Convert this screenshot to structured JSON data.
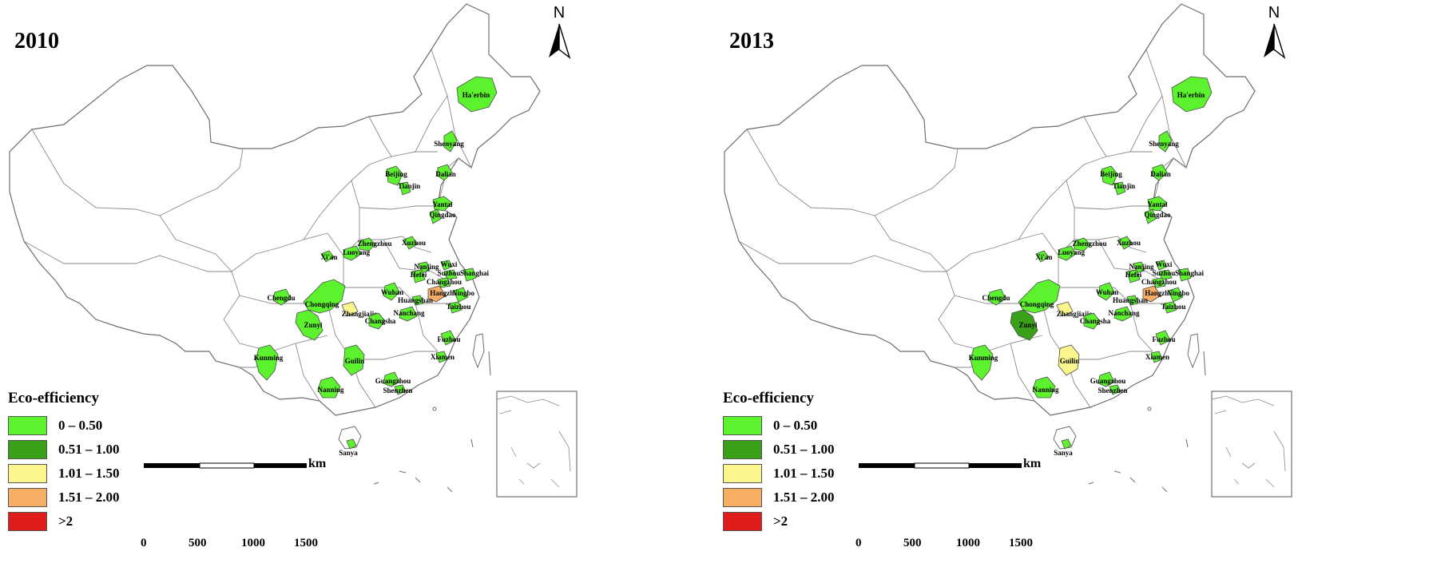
{
  "legend": {
    "title": "Eco-efficiency",
    "classes": [
      {
        "label": "0 – 0.50",
        "color": "#5cf22d"
      },
      {
        "label": "0.51 – 1.00",
        "color": "#3aa019"
      },
      {
        "label": "1.01 – 1.50",
        "color": "#faf58c"
      },
      {
        "label": "1.51 – 2.00",
        "color": "#f6ae64"
      },
      {
        "label": ">2",
        "color": "#e01d1d"
      }
    ]
  },
  "north_arrow": "N",
  "scale_bar": {
    "ticks": [
      "0",
      "500",
      "1000",
      "1500"
    ],
    "unit": "km"
  },
  "cities": [
    "Ha'erbin",
    "Shenyang",
    "Dalian",
    "Beijing",
    "Tianjin",
    "Yantai",
    "Qingdao",
    "Zhengzhou",
    "Luoyang",
    "Xuzhou",
    "Xi'an",
    "Nanjing",
    "Wuxi",
    "Hefei",
    "Suzhou",
    "Shanghai",
    "Changzhou",
    "Chengdu",
    "Wuhan",
    "Hangzhou",
    "Huangshan",
    "Ningbo",
    "Chongqing",
    "Zhangjiajie",
    "Taizhou",
    "Nanchang",
    "Changsha",
    "Zunyi",
    "Fuzhou",
    "Kunming",
    "Guilin",
    "Xiamen",
    "Guangzhou",
    "Shenzhen",
    "Nanning",
    "Sanya"
  ],
  "maps": [
    {
      "year": "2010",
      "classes": {
        "Ha'erbin": "#5cf22d",
        "Shenyang": "#5cf22d",
        "Dalian": "#5cf22d",
        "Beijing": "#5cf22d",
        "Tianjin": "#5cf22d",
        "Yantai": "#5cf22d",
        "Qingdao": "#5cf22d",
        "Zhengzhou": "#5cf22d",
        "Luoyang": "#5cf22d",
        "Xuzhou": "#5cf22d",
        "Xi'an": "#5cf22d",
        "Nanjing": "#5cf22d",
        "Wuxi": "#5cf22d",
        "Hefei": "#5cf22d",
        "Suzhou": "#5cf22d",
        "Shanghai": "#5cf22d",
        "Changzhou": "#5cf22d",
        "Chengdu": "#5cf22d",
        "Wuhan": "#5cf22d",
        "Hangzhou": "#f6ae64",
        "Huangshan": "#5cf22d",
        "Ningbo": "#5cf22d",
        "Chongqing": "#5cf22d",
        "Zhangjiajie": "#faf58c",
        "Taizhou": "#5cf22d",
        "Nanchang": "#5cf22d",
        "Changsha": "#5cf22d",
        "Zunyi": "#5cf22d",
        "Fuzhou": "#5cf22d",
        "Kunming": "#5cf22d",
        "Guilin": "#5cf22d",
        "Xiamen": "#5cf22d",
        "Guangzhou": "#5cf22d",
        "Shenzhen": "#5cf22d",
        "Nanning": "#5cf22d",
        "Sanya": "#5cf22d"
      }
    },
    {
      "year": "2013",
      "classes": {
        "Ha'erbin": "#5cf22d",
        "Shenyang": "#5cf22d",
        "Dalian": "#5cf22d",
        "Beijing": "#5cf22d",
        "Tianjin": "#5cf22d",
        "Yantai": "#5cf22d",
        "Qingdao": "#5cf22d",
        "Zhengzhou": "#5cf22d",
        "Luoyang": "#5cf22d",
        "Xuzhou": "#5cf22d",
        "Xi'an": "#5cf22d",
        "Nanjing": "#5cf22d",
        "Wuxi": "#5cf22d",
        "Hefei": "#5cf22d",
        "Suzhou": "#5cf22d",
        "Shanghai": "#5cf22d",
        "Changzhou": "#5cf22d",
        "Chengdu": "#5cf22d",
        "Wuhan": "#5cf22d",
        "Hangzhou": "#f6ae64",
        "Huangshan": "#5cf22d",
        "Ningbo": "#5cf22d",
        "Chongqing": "#5cf22d",
        "Zhangjiajie": "#faf58c",
        "Taizhou": "#5cf22d",
        "Nanchang": "#5cf22d",
        "Changsha": "#5cf22d",
        "Zunyi": "#3aa019",
        "Fuzhou": "#5cf22d",
        "Kunming": "#5cf22d",
        "Guilin": "#faf58c",
        "Xiamen": "#5cf22d",
        "Guangzhou": "#5cf22d",
        "Shenzhen": "#5cf22d",
        "Nanning": "#5cf22d",
        "Sanya": "#5cf22d"
      }
    }
  ]
}
